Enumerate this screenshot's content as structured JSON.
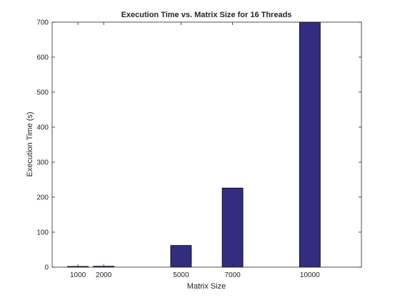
{
  "chart_data": {
    "type": "bar",
    "title": "Execution Time vs. Matrix Size for 16 Threads",
    "xlabel": "Matrix Size",
    "ylabel": "Execution Time (s)",
    "x": [
      1000,
      2000,
      5000,
      7000,
      10000
    ],
    "x_tick_labels": [
      "1000",
      "2000",
      "5000",
      "7000",
      "10000"
    ],
    "values": [
      0.3,
      2.5,
      62,
      226,
      700
    ],
    "xlim": [
      0,
      12000
    ],
    "ylim": [
      0,
      700
    ],
    "y_ticks": [
      0,
      100,
      200,
      300,
      400,
      500,
      600,
      700
    ],
    "grid": false,
    "bar_color": "#332d80"
  }
}
